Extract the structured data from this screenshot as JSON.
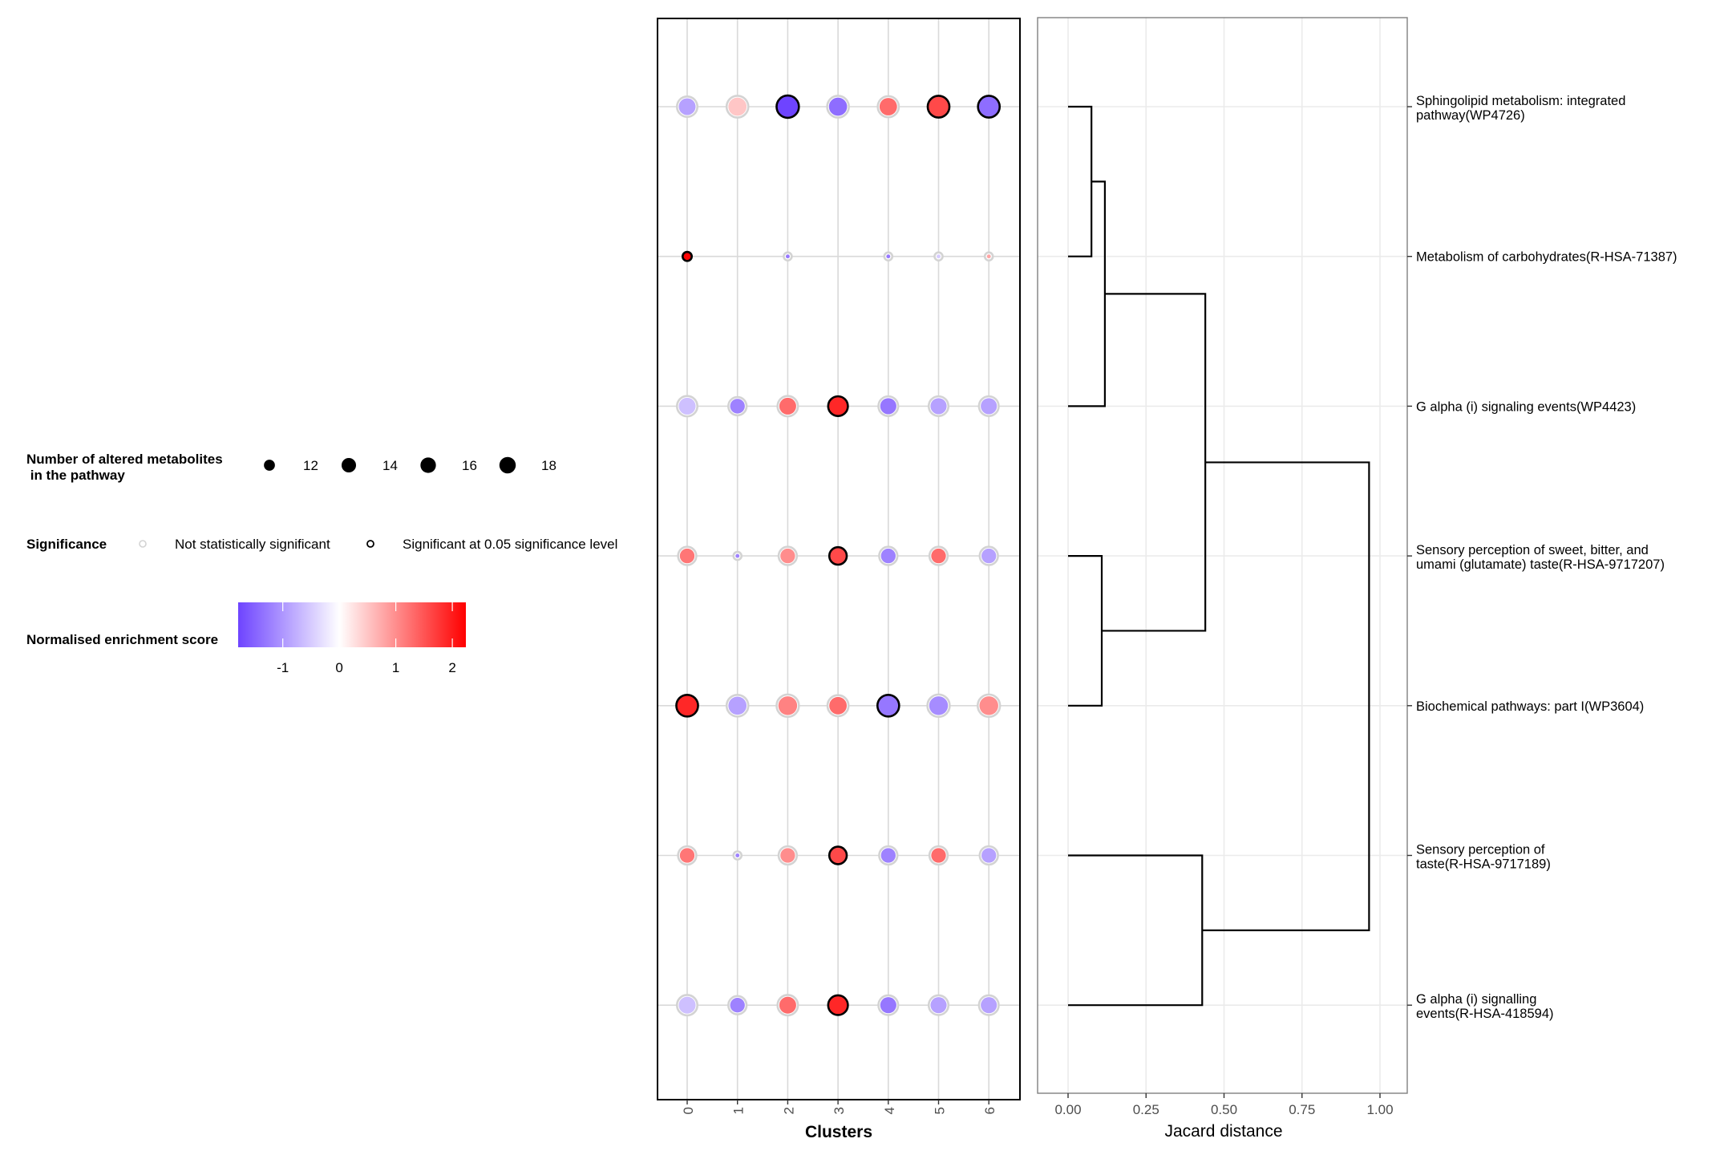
{
  "chart_data": [
    {
      "type": "scatter",
      "subtype": "dot-matrix",
      "xlabel": "Clusters",
      "x_categories": [
        "0",
        "1",
        "2",
        "3",
        "4",
        "5",
        "6"
      ],
      "y_categories": [
        "Sphingolipid metabolism: integrated pathway(WP4726)",
        "Metabolism of carbohydrates(R-HSA-71387)",
        "G alpha (i) signaling events(WP4423)",
        "Sensory perception of sweet, bitter, and umami (glutamate) taste(R-HSA-9717207)",
        "Biochemical pathways: part I(WP3604)",
        "Sensory perception of taste(R-HSA-9717189)",
        "G alpha (i) signalling events(R-HSA-418594)"
      ],
      "grid": true,
      "points": [
        {
          "row": 0,
          "cluster": "0",
          "size": 15,
          "score": -0.9,
          "significant": false
        },
        {
          "row": 0,
          "cluster": "1",
          "size": 17,
          "score": 0.5,
          "significant": false
        },
        {
          "row": 0,
          "cluster": "2",
          "size": 18,
          "score": -1.8,
          "significant": true
        },
        {
          "row": 0,
          "cluster": "3",
          "size": 17,
          "score": -1.4,
          "significant": false
        },
        {
          "row": 0,
          "cluster": "4",
          "size": 16,
          "score": 1.3,
          "significant": false
        },
        {
          "row": 0,
          "cluster": "5",
          "size": 17,
          "score": 1.6,
          "significant": true
        },
        {
          "row": 0,
          "cluster": "6",
          "size": 17,
          "score": -1.4,
          "significant": true
        },
        {
          "row": 1,
          "cluster": "0",
          "size": 3,
          "score": 2.2,
          "significant": true
        },
        {
          "row": 1,
          "cluster": "2",
          "size": 2,
          "score": -1.3,
          "significant": false
        },
        {
          "row": 1,
          "cluster": "4",
          "size": 2,
          "score": -1.3,
          "significant": false
        },
        {
          "row": 1,
          "cluster": "5",
          "size": 2,
          "score": -0.5,
          "significant": false
        },
        {
          "row": 1,
          "cluster": "6",
          "size": 2,
          "score": 0.8,
          "significant": false
        },
        {
          "row": 2,
          "cluster": "0",
          "size": 15,
          "score": -0.6,
          "significant": false
        },
        {
          "row": 2,
          "cluster": "1",
          "size": 12,
          "score": -1.2,
          "significant": false
        },
        {
          "row": 2,
          "cluster": "2",
          "size": 15,
          "score": 1.3,
          "significant": false
        },
        {
          "row": 2,
          "cluster": "3",
          "size": 14,
          "score": 1.9,
          "significant": true
        },
        {
          "row": 2,
          "cluster": "4",
          "size": 14,
          "score": -1.3,
          "significant": false
        },
        {
          "row": 2,
          "cluster": "5",
          "size": 14,
          "score": -0.9,
          "significant": false
        },
        {
          "row": 2,
          "cluster": "6",
          "size": 14,
          "score": -0.9,
          "significant": false
        },
        {
          "row": 3,
          "cluster": "0",
          "size": 12,
          "score": 1.2,
          "significant": false
        },
        {
          "row": 3,
          "cluster": "1",
          "size": 2,
          "score": -1.2,
          "significant": false
        },
        {
          "row": 3,
          "cluster": "2",
          "size": 12,
          "score": 1.0,
          "significant": false
        },
        {
          "row": 3,
          "cluster": "3",
          "size": 11,
          "score": 1.6,
          "significant": true
        },
        {
          "row": 3,
          "cluster": "4",
          "size": 12,
          "score": -1.2,
          "significant": false
        },
        {
          "row": 3,
          "cluster": "5",
          "size": 12,
          "score": 1.3,
          "significant": false
        },
        {
          "row": 3,
          "cluster": "6",
          "size": 12,
          "score": -0.9,
          "significant": false
        },
        {
          "row": 4,
          "cluster": "0",
          "size": 17,
          "score": 1.9,
          "significant": true
        },
        {
          "row": 4,
          "cluster": "1",
          "size": 17,
          "score": -0.9,
          "significant": false
        },
        {
          "row": 4,
          "cluster": "2",
          "size": 18,
          "score": 1.1,
          "significant": false
        },
        {
          "row": 4,
          "cluster": "3",
          "size": 16,
          "score": 1.3,
          "significant": false
        },
        {
          "row": 4,
          "cluster": "4",
          "size": 17,
          "score": -1.3,
          "significant": true
        },
        {
          "row": 4,
          "cluster": "5",
          "size": 18,
          "score": -1.1,
          "significant": false
        },
        {
          "row": 4,
          "cluster": "6",
          "size": 18,
          "score": 1.0,
          "significant": false
        },
        {
          "row": 5,
          "cluster": "0",
          "size": 12,
          "score": 1.2,
          "significant": false
        },
        {
          "row": 5,
          "cluster": "1",
          "size": 2,
          "score": -1.2,
          "significant": false
        },
        {
          "row": 5,
          "cluster": "2",
          "size": 12,
          "score": 1.0,
          "significant": false
        },
        {
          "row": 5,
          "cluster": "3",
          "size": 11,
          "score": 1.6,
          "significant": true
        },
        {
          "row": 5,
          "cluster": "4",
          "size": 12,
          "score": -1.2,
          "significant": false
        },
        {
          "row": 5,
          "cluster": "5",
          "size": 12,
          "score": 1.3,
          "significant": false
        },
        {
          "row": 5,
          "cluster": "6",
          "size": 12,
          "score": -0.9,
          "significant": false
        },
        {
          "row": 6,
          "cluster": "0",
          "size": 15,
          "score": -0.6,
          "significant": false
        },
        {
          "row": 6,
          "cluster": "1",
          "size": 12,
          "score": -1.2,
          "significant": false
        },
        {
          "row": 6,
          "cluster": "2",
          "size": 15,
          "score": 1.3,
          "significant": false
        },
        {
          "row": 6,
          "cluster": "3",
          "size": 14,
          "score": 1.9,
          "significant": true
        },
        {
          "row": 6,
          "cluster": "4",
          "size": 14,
          "score": -1.3,
          "significant": false
        },
        {
          "row": 6,
          "cluster": "5",
          "size": 14,
          "score": -0.9,
          "significant": false
        },
        {
          "row": 6,
          "cluster": "6",
          "size": 14,
          "score": -0.9,
          "significant": false
        }
      ]
    },
    {
      "type": "dendrogram",
      "xlabel": "Jacard distance",
      "xlim": [
        -0.1,
        1.05
      ],
      "x_ticks": [
        0,
        0.25,
        0.5,
        0.75,
        1.0
      ],
      "x_tick_labels": [
        "0.00",
        "0.25",
        "0.50",
        "0.75",
        "1.00"
      ],
      "grid": true,
      "leaves": [
        "Sphingolipid metabolism: integrated pathway(WP4726)",
        "Metabolism of carbohydrates(R-HSA-71387)",
        "G alpha (i) signaling events(WP4423)",
        "Sensory perception of sweet, bitter, and umami (glutamate) taste(R-HSA-9717207)",
        "Biochemical pathways: part I(WP3604)",
        "Sensory perception of taste(R-HSA-9717189)",
        "G alpha (i) signalling events(R-HSA-418594)"
      ],
      "merges": [
        {
          "id": "m1",
          "left": 0,
          "right": 1,
          "height": 0.075
        },
        {
          "id": "m2",
          "left": "m1",
          "right": 2,
          "height": 0.118
        },
        {
          "id": "m3",
          "left": 3,
          "right": 4,
          "height": 0.108
        },
        {
          "id": "m4",
          "left": "m2",
          "right": "m3",
          "height": 0.44
        },
        {
          "id": "m5",
          "left": 5,
          "right": 6,
          "height": 0.43
        },
        {
          "id": "m6",
          "left": "m4",
          "right": "m5",
          "height": 0.965
        }
      ]
    }
  ],
  "legend": {
    "size": {
      "title_line1": "Number of altered metabolites",
      "title_line2": " in the pathway",
      "items": [
        {
          "value": 12,
          "label": "12"
        },
        {
          "value": 14,
          "label": "14"
        },
        {
          "value": 16,
          "label": "16"
        },
        {
          "value": 18,
          "label": "18"
        }
      ]
    },
    "significance": {
      "title": "Significance",
      "items": [
        {
          "label": "Not statistically significant",
          "significant": false
        },
        {
          "label": "Significant at 0.05 significance level",
          "significant": true
        }
      ]
    },
    "color": {
      "title": "Normalised enrichment score",
      "range": [
        -1.79,
        2.24
      ],
      "ticks": [
        -1,
        0,
        1,
        2
      ],
      "tick_labels": [
        "-1",
        "0",
        "1",
        "2"
      ],
      "low_color": "#6E44FF",
      "mid_color": "#FFFFFF",
      "high_color": "#FF0000"
    }
  },
  "colors": {
    "grid": "#D9D9D9",
    "not_significant_stroke": "#D3D3D3",
    "significant_stroke": "#000000",
    "dendro_line": "#000000",
    "dendro_grid": "#EBEBEB",
    "dendro_border": "#7F7F7F"
  }
}
